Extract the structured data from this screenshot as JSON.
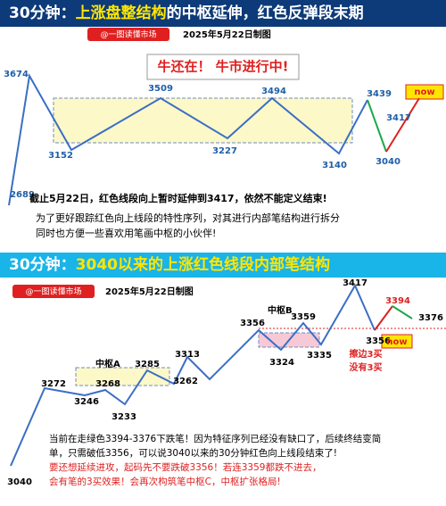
{
  "top": {
    "title": [
      "30分钟：",
      "上涨盘整结构",
      "的中枢延伸，红色反弹段末期"
    ],
    "badge": "@一图读懂市场",
    "date": "2025年5月22日制图",
    "slogan": "牛还在！ 牛市进行中!",
    "points": [
      "2689",
      "3674",
      "3152",
      "3509",
      "3227",
      "3494",
      "3140",
      "3439",
      "3040",
      "3417"
    ],
    "now": "now",
    "notes": [
      "截止5月22日，红色线段向上暂时延伸到3417，依然不能定义结束!",
      "为了更好跟踪红色向上线段的特性序列，对其进行内部笔结构进行拆分",
      "同时也方便一些喜欢用笔画中枢的小伙伴!"
    ]
  },
  "bottom": {
    "title": [
      "30分钟：",
      "3040以来的上涨红色线段内部笔结构"
    ],
    "badge": "@一图读懂市场",
    "date": "2025年5月22日制图",
    "points": [
      "3040",
      "3272",
      "3246",
      "3268",
      "3233",
      "3285",
      "3262",
      "3313",
      "3356",
      "3324",
      "3359",
      "3335",
      "3417",
      "3356",
      "3394",
      "3376"
    ],
    "zones": [
      "中枢A",
      "中枢B"
    ],
    "edge": [
      "擦边3买",
      "没有3买"
    ],
    "now": "now",
    "notes": [
      "当前在走绿色3394-3376下跌笔！因为特征序列已经没有缺口了，后续终结变简",
      "单，只需破低3356，可以说3040以来的30分钟红色向上线段结束了!"
    ],
    "warn": [
      "要还想延续进攻，起码先不要跌破3356！若连3359都跌不进去，",
      "会有笔的3买效果！会再次构筑笔中枢C，中枢扩张格局!"
    ]
  }
}
